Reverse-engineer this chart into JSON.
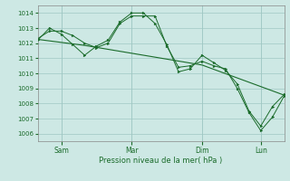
{
  "background_color": "#cde8e4",
  "grid_color": "#a0c8c4",
  "line_color": "#1a6b2a",
  "marker_color": "#1a6b2a",
  "xlabel": "Pression niveau de la mer( hPa )",
  "ylim": [
    1005.5,
    1014.5
  ],
  "yticks": [
    1006,
    1007,
    1008,
    1009,
    1010,
    1011,
    1012,
    1013,
    1014
  ],
  "xlim": [
    0,
    21
  ],
  "xtick_positions": [
    2,
    8,
    14,
    19
  ],
  "xtick_labels": [
    "Sam",
    "Mar",
    "Dim",
    "Lun"
  ],
  "series": [
    {
      "x": [
        0,
        1,
        2,
        3,
        4,
        5,
        6,
        7,
        8,
        9,
        10,
        11,
        12,
        13,
        14,
        15,
        16,
        17,
        18,
        19,
        20,
        21
      ],
      "y": [
        1012.3,
        1012.8,
        1012.8,
        1012.5,
        1012.0,
        1011.7,
        1012.0,
        1013.3,
        1013.8,
        1013.8,
        1013.8,
        1011.8,
        1010.4,
        1010.5,
        1010.8,
        1010.5,
        1010.3,
        1009.0,
        1007.4,
        1006.2,
        1007.1,
        1008.5
      ],
      "has_markers": true
    },
    {
      "x": [
        0,
        1,
        2,
        3,
        4,
        5,
        6,
        7,
        8,
        9,
        10,
        11,
        12,
        13,
        14,
        15,
        16,
        17,
        18,
        19,
        20,
        21
      ],
      "y": [
        1012.2,
        1013.0,
        1012.6,
        1011.9,
        1011.2,
        1011.8,
        1012.2,
        1013.4,
        1014.0,
        1014.0,
        1013.3,
        1011.9,
        1010.1,
        1010.3,
        1011.2,
        1010.7,
        1010.2,
        1009.3,
        1007.5,
        1006.5,
        1007.8,
        1008.6
      ],
      "has_markers": true
    },
    {
      "x": [
        0,
        4,
        14,
        21
      ],
      "y": [
        1012.25,
        1011.85,
        1010.55,
        1008.55
      ],
      "has_markers": false
    }
  ]
}
